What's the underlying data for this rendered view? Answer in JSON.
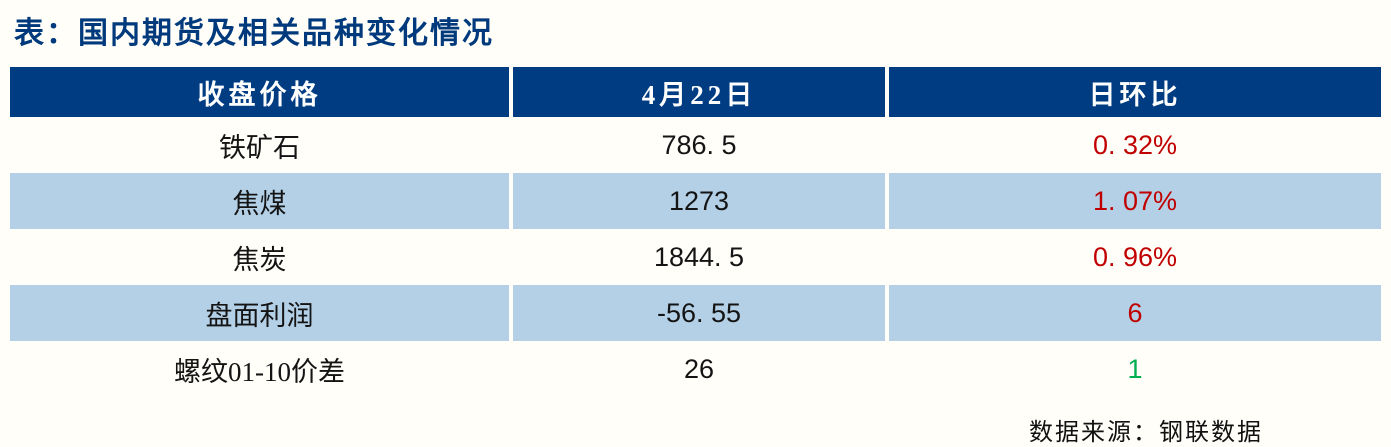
{
  "page": {
    "title": "表：国内期货及相关品种变化情况",
    "source_note": "数据来源：钢联数据"
  },
  "table": {
    "columns": [
      {
        "label": "收盘价格"
      },
      {
        "label": "4月22日"
      },
      {
        "label": "日环比"
      }
    ],
    "rows": [
      {
        "name": "铁矿石",
        "value": "786. 5",
        "change": "0. 32%",
        "change_color": "red"
      },
      {
        "name": "焦煤",
        "value": "1273",
        "change": "1. 07%",
        "change_color": "red"
      },
      {
        "name": "焦炭",
        "value": "1844. 5",
        "change": "0. 96%",
        "change_color": "red"
      },
      {
        "name": "盘面利润",
        "value": "-56. 55",
        "change": "6",
        "change_color": "red"
      },
      {
        "name": "螺纹01-10价差",
        "value": "26",
        "change": "1",
        "change_color": "green"
      }
    ]
  },
  "colors": {
    "header_bg": "#003C82",
    "header_text": "#FFFFFF",
    "alt_row_bg": "#B3D0E6",
    "title_text": "#003A7C",
    "increase_red": "#C00000",
    "decrease_green": "#00B050"
  },
  "chart_data": {
    "type": "table",
    "title": "表：国内期货及相关品种变化情况",
    "columns": [
      "收盘价格",
      "4月22日",
      "日环比"
    ],
    "rows": [
      [
        "铁矿石",
        786.5,
        "0.32%"
      ],
      [
        "焦煤",
        1273,
        "1.07%"
      ],
      [
        "焦炭",
        1844.5,
        "0.96%"
      ],
      [
        "盘面利润",
        -56.55,
        6
      ],
      [
        "螺纹01-10价差",
        26,
        1
      ]
    ],
    "source": "数据来源：钢联数据",
    "layout": "header dark blue; rows alternate white / light blue; positive changes red, last-row change green"
  }
}
